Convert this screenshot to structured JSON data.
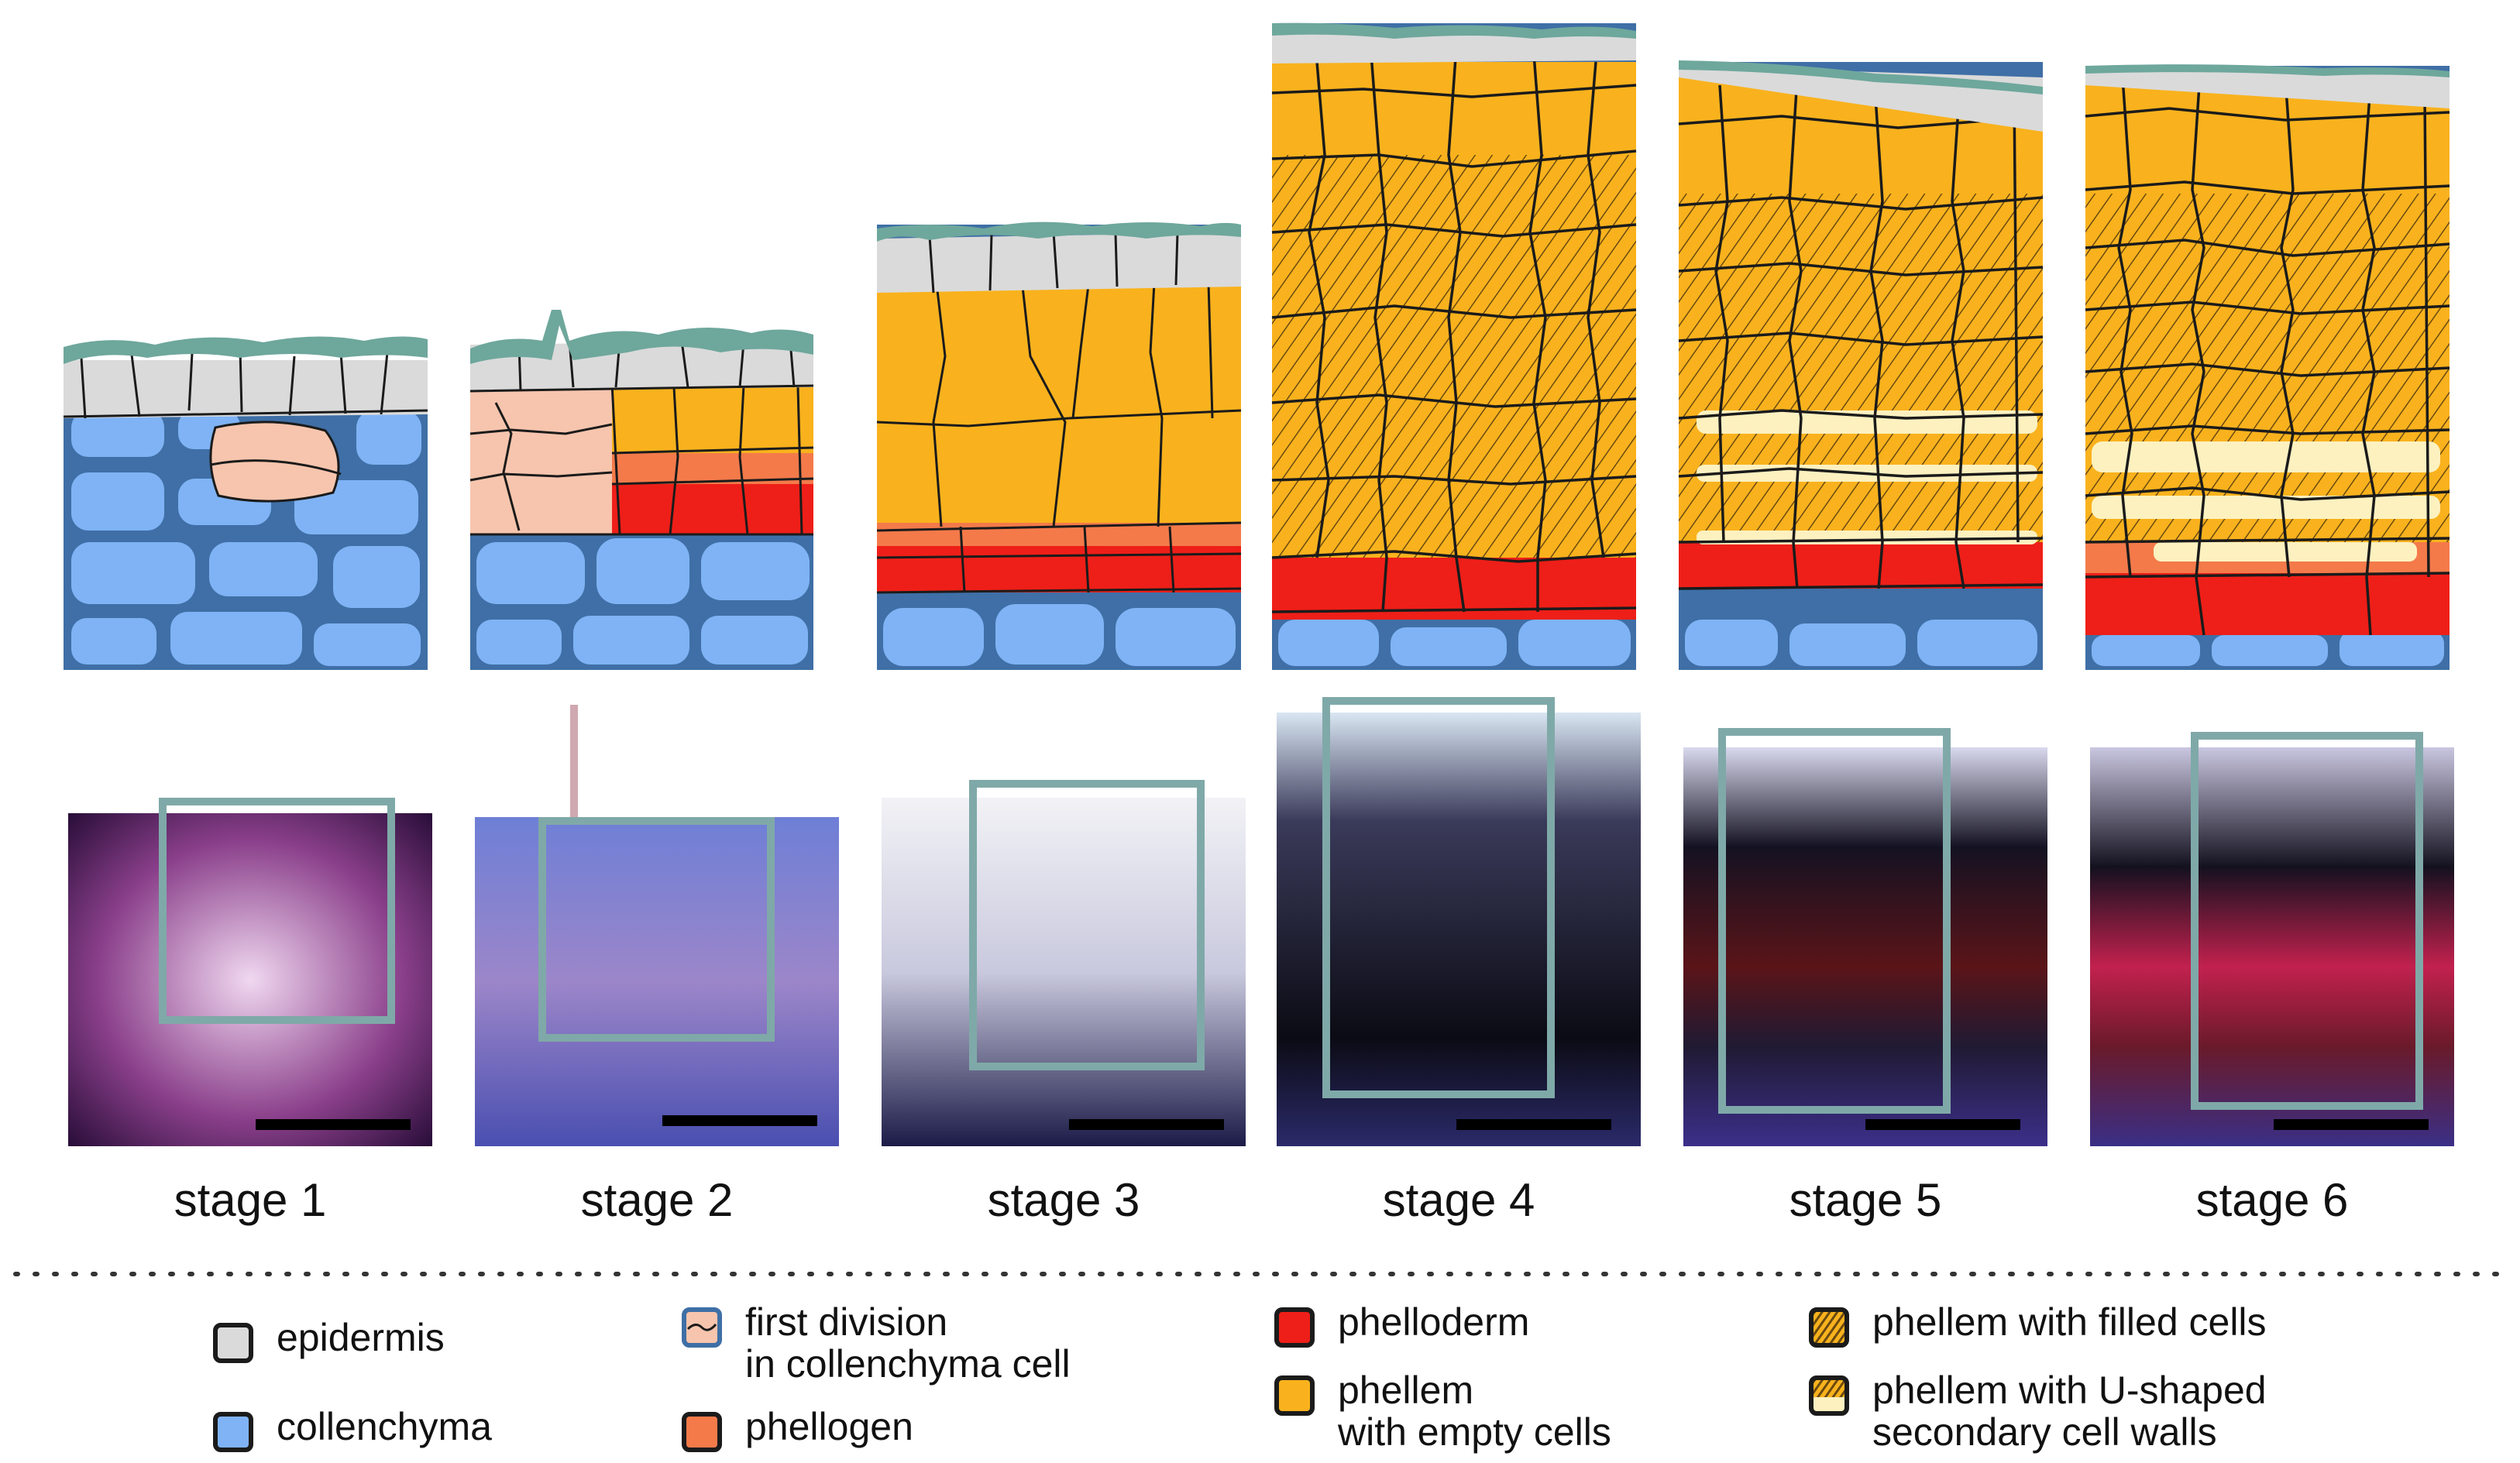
{
  "stages": [
    {
      "label": "stage 1"
    },
    {
      "label": "stage 2"
    },
    {
      "label": "stage 3"
    },
    {
      "label": "stage 4"
    },
    {
      "label": "stage 5"
    },
    {
      "label": "stage 6"
    }
  ],
  "legend": [
    {
      "id": "epidermis",
      "lines": [
        "epidermis"
      ],
      "color": "#dadada",
      "icon": "grey-square-icon"
    },
    {
      "id": "collenchyma",
      "lines": [
        "collenchyma"
      ],
      "color": "#7fb3f5",
      "icon": "blue-square-icon"
    },
    {
      "id": "first-division",
      "lines": [
        "first division",
        "in collenchyma cell"
      ],
      "color": "#f7c5ad",
      "icon": "divided-cell-icon"
    },
    {
      "id": "phellogen",
      "lines": [
        "phellogen"
      ],
      "color": "#f47a4a",
      "icon": "orange-red-square-icon"
    },
    {
      "id": "phelloderm",
      "lines": [
        "phelloderm"
      ],
      "color": "#ee1f18",
      "icon": "red-square-icon"
    },
    {
      "id": "phellem-empty",
      "lines": [
        "phellem",
        "with empty cells"
      ],
      "color": "#f9b21d",
      "icon": "yellow-square-icon"
    },
    {
      "id": "phellem-filled",
      "lines": [
        "phellem with filled cells"
      ],
      "color": "#f9b21d",
      "icon": "hatched-square-icon"
    },
    {
      "id": "phellem-ushaped",
      "lines": [
        "phellem with U-shaped",
        "secondary cell walls"
      ],
      "color": "#f9b21d",
      "icon": "hatched-ushaped-square-icon"
    }
  ],
  "colors": {
    "cuticle": "#6ea79c",
    "epidermis": "#dadada",
    "collenchyma": "#7fb3f5",
    "collenchyma_wall": "#3f6fa6",
    "first_division": "#f7c5ad",
    "phellogen": "#f47a4a",
    "phelloderm": "#ee1f18",
    "phellem": "#f9b21d",
    "u_wall": "#fdf1c0",
    "frame": "#7fa9a8"
  }
}
